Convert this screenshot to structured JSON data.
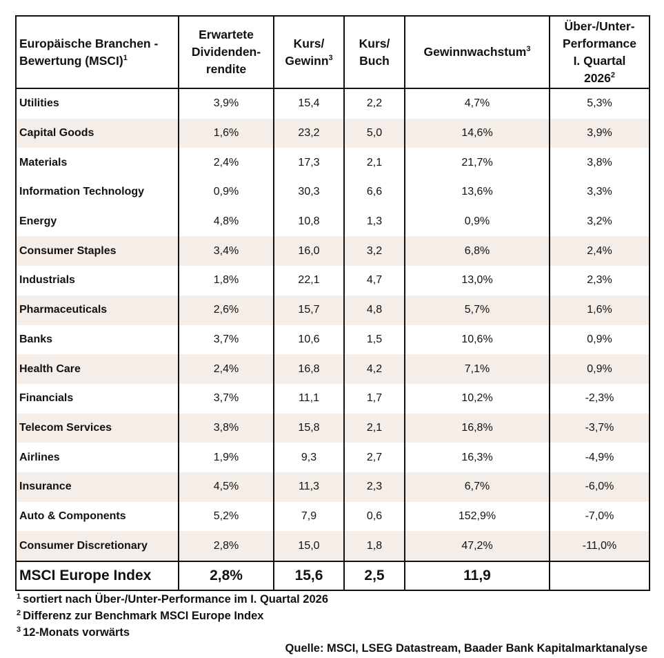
{
  "header": {
    "col_name": "Europäische Branchen - Bewertung (MSCI)",
    "col_name_sup": "1",
    "col_div_line1": "Erwartete",
    "col_div_line2": "Dividenden-",
    "col_div_line3": "rendite",
    "col_pe_line1": "Kurs/",
    "col_pe_line2": "Gewinn",
    "col_pe_sup": "3",
    "col_pb_line1": "Kurs/",
    "col_pb_line2": "Buch",
    "col_growth": "Gewinnwachstum",
    "col_growth_sup": "3",
    "col_perf_line1": "Über-/Unter-",
    "col_perf_line2": "Performance",
    "col_perf_line3": "I. Quartal",
    "col_perf_line4": "2026",
    "col_perf_sup": "2"
  },
  "rows": [
    {
      "name": "Utilities",
      "div": "3,9%",
      "pe": "15,4",
      "pb": "2,2",
      "growth": "4,7%",
      "perf": "5,3%"
    },
    {
      "name": "Capital Goods",
      "div": "1,6%",
      "pe": "23,2",
      "pb": "5,0",
      "growth": "14,6%",
      "perf": "3,9%"
    },
    {
      "name": "Materials",
      "div": "2,4%",
      "pe": "17,3",
      "pb": "2,1",
      "growth": "21,7%",
      "perf": "3,8%"
    },
    {
      "name": "Information Technology",
      "div": "0,9%",
      "pe": "30,3",
      "pb": "6,6",
      "growth": "13,6%",
      "perf": "3,3%"
    },
    {
      "name": "Energy",
      "div": "4,8%",
      "pe": "10,8",
      "pb": "1,3",
      "growth": "0,9%",
      "perf": "3,2%"
    },
    {
      "name": "Consumer Staples",
      "div": "3,4%",
      "pe": "16,0",
      "pb": "3,2",
      "growth": "6,8%",
      "perf": "2,4%"
    },
    {
      "name": "Industrials",
      "div": "1,8%",
      "pe": "22,1",
      "pb": "4,7",
      "growth": "13,0%",
      "perf": "2,3%"
    },
    {
      "name": "Pharmaceuticals",
      "div": "2,6%",
      "pe": "15,7",
      "pb": "4,8",
      "growth": "5,7%",
      "perf": "1,6%"
    },
    {
      "name": "Banks",
      "div": "3,7%",
      "pe": "10,6",
      "pb": "1,5",
      "growth": "10,6%",
      "perf": "0,9%"
    },
    {
      "name": "Health Care",
      "div": "2,4%",
      "pe": "16,8",
      "pb": "4,2",
      "growth": "7,1%",
      "perf": "0,9%"
    },
    {
      "name": "Financials",
      "div": "3,7%",
      "pe": "11,1",
      "pb": "1,7",
      "growth": "10,2%",
      "perf": "-2,3%"
    },
    {
      "name": "Telecom Services",
      "div": "3,8%",
      "pe": "15,8",
      "pb": "2,1",
      "growth": "16,8%",
      "perf": "-3,7%"
    },
    {
      "name": "Airlines",
      "div": "1,9%",
      "pe": "9,3",
      "pb": "2,7",
      "growth": "16,3%",
      "perf": "-4,9%"
    },
    {
      "name": "Insurance",
      "div": "4,5%",
      "pe": "11,3",
      "pb": "2,3",
      "growth": "6,7%",
      "perf": "-6,0%"
    },
    {
      "name": "Auto & Components",
      "div": "5,2%",
      "pe": "7,9",
      "pb": "0,6",
      "growth": "152,9%",
      "perf": "-7,0%"
    },
    {
      "name": "Consumer Discretionary",
      "div": "2,8%",
      "pe": "15,0",
      "pb": "1,8",
      "growth": "47,2%",
      "perf": "-11,0%"
    }
  ],
  "index_row": {
    "name": "MSCI Europe Index",
    "div": "2,8%",
    "pe": "15,6",
    "pb": "2,5",
    "growth": "11,9",
    "perf": ""
  },
  "footnotes": [
    {
      "mark": "1",
      "text": "sortiert nach Über-/Unter-Performance im I. Quartal 2026"
    },
    {
      "mark": "2",
      "text": "Differenz zur Benchmark MSCI Europe Index"
    },
    {
      "mark": "3",
      "text": "12-Monats vorwärts"
    }
  ],
  "source": "Quelle: MSCI, LSEG Datastream, Baader Bank Kapitalmarktanalyse",
  "colors": {
    "row_alt": "#f5ede7",
    "border": "#111111",
    "text": "#111111"
  }
}
